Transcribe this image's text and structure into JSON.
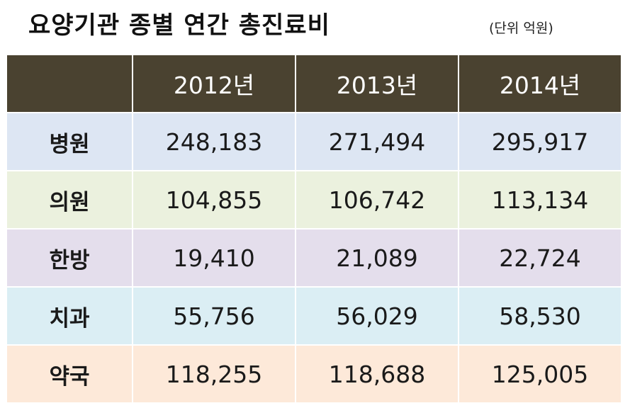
{
  "title": "요양기관 종별 연간 총진료비",
  "unit": "(단위 억원)",
  "colors": {
    "header_bg": "#4a4230",
    "header_text": "#ffffff",
    "rows": [
      "#dde6f3",
      "#ebf1de",
      "#e4deec",
      "#dbeef4",
      "#fde9d9"
    ]
  },
  "chart_data": {
    "type": "table",
    "title": "요양기관 종별 연간 총진료비",
    "unit": "(단위 억원)",
    "columns": [
      "2012년",
      "2013년",
      "2014년"
    ],
    "rows": [
      {
        "label": "병원",
        "values": [
          "248,183",
          "271,494",
          "295,917"
        ]
      },
      {
        "label": "의원",
        "values": [
          "104,855",
          "106,742",
          "113,134"
        ]
      },
      {
        "label": "한방",
        "values": [
          "19,410",
          "21,089",
          "22,724"
        ]
      },
      {
        "label": "치과",
        "values": [
          "55,756",
          "56,029",
          "58,530"
        ]
      },
      {
        "label": "약국",
        "values": [
          "118,255",
          "118,688",
          "125,005"
        ]
      }
    ]
  }
}
